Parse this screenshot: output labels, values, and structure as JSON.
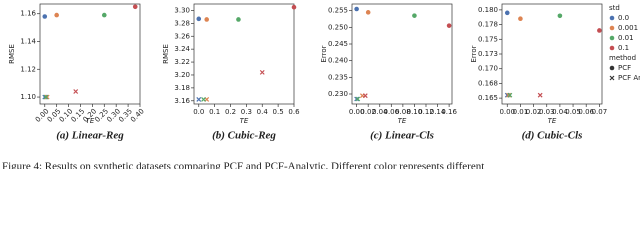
{
  "chart_data": [
    {
      "type": "scatter",
      "subcaption": "(a) Linear-Reg",
      "xlabel": "TE",
      "ylabel": "RMSE",
      "xtick_rotation": 45,
      "xlim": [
        -0.02,
        0.4
      ],
      "ylim": [
        1.095,
        1.167
      ],
      "xticks": [
        {
          "value": 0,
          "label": "0.00"
        },
        0.05,
        {
          "value": 0.1,
          "label": "0.10"
        },
        0.15,
        {
          "value": 0.2,
          "label": "0.20"
        },
        0.25,
        {
          "value": 0.3,
          "label": "0.30"
        },
        0.35,
        {
          "value": 0.4,
          "label": "0.40"
        }
      ],
      "yticks": [
        {
          "value": 1.1,
          "label": "1.10"
        },
        1.12,
        1.14,
        1.16
      ],
      "series": [
        {
          "name": "0.0",
          "method": "PCF",
          "color": "#4c72b0",
          "x": [
            0.0
          ],
          "values": [
            1.158
          ]
        },
        {
          "name": "0.001",
          "method": "PCF",
          "color": "#dd8452",
          "x": [
            0.05
          ],
          "values": [
            1.159
          ]
        },
        {
          "name": "0.01",
          "method": "PCF",
          "color": "#55a868",
          "x": [
            0.25
          ],
          "values": [
            1.159
          ]
        },
        {
          "name": "0.1",
          "method": "PCF",
          "color": "#c44e52",
          "x": [
            0.38
          ],
          "values": [
            1.165
          ]
        },
        {
          "name": "0.0",
          "method": "PCF Ana",
          "color": "#4c72b0",
          "x": [
            0.0
          ],
          "values": [
            1.1
          ]
        },
        {
          "name": "0.001",
          "method": "PCF Ana",
          "color": "#dd8452",
          "x": [
            0.01
          ],
          "values": [
            1.1
          ]
        },
        {
          "name": "0.01",
          "method": "PCF Ana",
          "color": "#55a868",
          "x": [
            0.005
          ],
          "values": [
            1.1
          ]
        },
        {
          "name": "0.1",
          "method": "PCF Ana",
          "color": "#c44e52",
          "x": [
            0.13
          ],
          "values": [
            1.104
          ]
        }
      ]
    },
    {
      "type": "scatter",
      "subcaption": "(b) Cubic-Reg",
      "xlabel": "TE",
      "ylabel": "RMSE",
      "xlim": [
        -0.03,
        0.6
      ],
      "ylim": [
        3.155,
        3.31
      ],
      "xticks": [
        {
          "value": 0,
          "label": "0.0"
        },
        0.1,
        0.2,
        0.3,
        0.4,
        0.5,
        0.6
      ],
      "yticks": [
        3.16,
        3.18,
        {
          "value": 3.2,
          "label": "3.20"
        },
        3.22,
        3.24,
        3.26,
        3.28,
        {
          "value": 3.3,
          "label": "3.30"
        }
      ],
      "series": [
        {
          "name": "0.0",
          "method": "PCF",
          "color": "#4c72b0",
          "x": [
            0.0
          ],
          "values": [
            3.287
          ]
        },
        {
          "name": "0.001",
          "method": "PCF",
          "color": "#dd8452",
          "x": [
            0.05
          ],
          "values": [
            3.286
          ]
        },
        {
          "name": "0.01",
          "method": "PCF",
          "color": "#55a868",
          "x": [
            0.25
          ],
          "values": [
            3.286
          ]
        },
        {
          "name": "0.1",
          "method": "PCF",
          "color": "#c44e52",
          "x": [
            0.6
          ],
          "values": [
            3.305
          ]
        },
        {
          "name": "0.0",
          "method": "PCF Ana",
          "color": "#4c72b0",
          "x": [
            0.0
          ],
          "values": [
            3.162
          ]
        },
        {
          "name": "0.001",
          "method": "PCF Ana",
          "color": "#dd8452",
          "x": [
            0.05
          ],
          "values": [
            3.162
          ]
        },
        {
          "name": "0.01",
          "method": "PCF Ana",
          "color": "#55a868",
          "x": [
            0.03
          ],
          "values": [
            3.162
          ]
        },
        {
          "name": "0.1",
          "method": "PCF Ana",
          "color": "#c44e52",
          "x": [
            0.4
          ],
          "values": [
            3.204
          ]
        }
      ]
    },
    {
      "type": "scatter",
      "subcaption": "(c) Linear-Cls",
      "xlabel": "TE",
      "ylabel": "Error",
      "xlim": [
        -0.008,
        0.165
      ],
      "ylim": [
        0.227,
        0.257
      ],
      "xticks": [
        {
          "value": 0,
          "label": "0.00"
        },
        0.02,
        0.04,
        0.06,
        0.08,
        {
          "value": 0.1,
          "label": "0.10"
        },
        0.12,
        0.14,
        0.16
      ],
      "yticks": [
        {
          "value": 0.23,
          "label": "0.230"
        },
        0.235,
        {
          "value": 0.24,
          "label": "0.240"
        },
        0.245,
        {
          "value": 0.25,
          "label": "0.250"
        },
        0.255
      ],
      "series": [
        {
          "name": "0.0",
          "method": "PCF",
          "color": "#4c72b0",
          "x": [
            0.0
          ],
          "values": [
            0.2555
          ]
        },
        {
          "name": "0.001",
          "method": "PCF",
          "color": "#dd8452",
          "x": [
            0.02
          ],
          "values": [
            0.2545
          ]
        },
        {
          "name": "0.01",
          "method": "PCF",
          "color": "#55a868",
          "x": [
            0.1
          ],
          "values": [
            0.2535
          ]
        },
        {
          "name": "0.1",
          "method": "PCF",
          "color": "#c44e52",
          "x": [
            0.16
          ],
          "values": [
            0.2505
          ]
        },
        {
          "name": "0.0",
          "method": "PCF Ana",
          "color": "#4c72b0",
          "x": [
            0.0
          ],
          "values": [
            0.2285
          ]
        },
        {
          "name": "0.001",
          "method": "PCF Ana",
          "color": "#dd8452",
          "x": [
            0.01
          ],
          "values": [
            0.2295
          ]
        },
        {
          "name": "0.01",
          "method": "PCF Ana",
          "color": "#55a868",
          "x": [
            0.002
          ],
          "values": [
            0.2285
          ]
        },
        {
          "name": "0.1",
          "method": "PCF Ana",
          "color": "#c44e52",
          "x": [
            0.015
          ],
          "values": [
            0.2295
          ]
        }
      ]
    },
    {
      "type": "scatter",
      "subcaption": "(d) Cubic-Cls",
      "xlabel": "TE",
      "ylabel": "Error",
      "xlim": [
        -0.004,
        0.072
      ],
      "ylim": [
        0.164,
        0.181
      ],
      "xticks": [
        {
          "value": 0,
          "label": "0.00"
        },
        0.01,
        0.02,
        0.03,
        0.04,
        0.05,
        0.06,
        0.07
      ],
      "yticks": [
        0.165,
        {
          "value": 0.1675,
          "label": "0.168"
        },
        {
          "value": 0.17,
          "label": "0.170"
        },
        {
          "value": 0.1725,
          "label": "0.173"
        },
        0.175,
        {
          "value": 0.1775,
          "label": "0.178"
        },
        {
          "value": 0.18,
          "label": "0.180"
        }
      ],
      "series": [
        {
          "name": "0.0",
          "method": "PCF",
          "color": "#4c72b0",
          "x": [
            0.0
          ],
          "values": [
            0.1795
          ]
        },
        {
          "name": "0.001",
          "method": "PCF",
          "color": "#dd8452",
          "x": [
            0.01
          ],
          "values": [
            0.1785
          ]
        },
        {
          "name": "0.01",
          "method": "PCF",
          "color": "#55a868",
          "x": [
            0.04
          ],
          "values": [
            0.179
          ]
        },
        {
          "name": "0.1",
          "method": "PCF",
          "color": "#c44e52",
          "x": [
            0.07
          ],
          "values": [
            0.1765
          ]
        },
        {
          "name": "0.0",
          "method": "PCF Ana",
          "color": "#4c72b0",
          "x": [
            0.0
          ],
          "values": [
            0.1655
          ]
        },
        {
          "name": "0.001",
          "method": "PCF Ana",
          "color": "#dd8452",
          "x": [
            0.001
          ],
          "values": [
            0.1655
          ]
        },
        {
          "name": "0.01",
          "method": "PCF Ana",
          "color": "#55a868",
          "x": [
            0.002
          ],
          "values": [
            0.1655
          ]
        },
        {
          "name": "0.1",
          "method": "PCF Ana",
          "color": "#c44e52",
          "x": [
            0.025
          ],
          "values": [
            0.1655
          ]
        }
      ]
    }
  ],
  "legend": {
    "std_title": "std",
    "std": [
      {
        "label": "0.0",
        "color": "#4c72b0"
      },
      {
        "label": "0.001",
        "color": "#dd8452"
      },
      {
        "label": "0.01",
        "color": "#55a868"
      },
      {
        "label": "0.1",
        "color": "#c44e52"
      }
    ],
    "method_title": "method",
    "methods": [
      {
        "label": "PCF",
        "marker": "o"
      },
      {
        "label": "PCF Ana",
        "marker": "x"
      }
    ]
  },
  "caption": "Figure 4: Results on synthetic datasets comparing PCF and PCF-Analytic. Different color represents different"
}
